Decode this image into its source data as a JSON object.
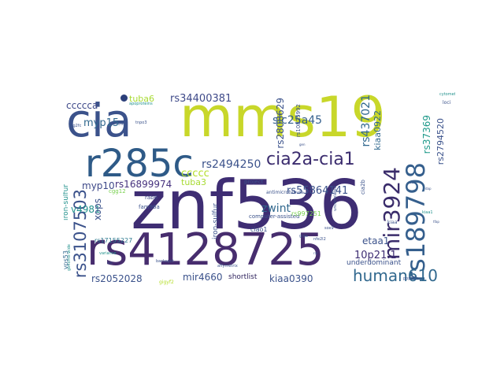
{
  "palette": {
    "purple": "#440154",
    "indigo": "#3b528b",
    "blue": "#31688e",
    "teal": "#21918c",
    "green": "#35b779",
    "lime": "#b5de2b",
    "yellowgreen": "#c8d72a"
  },
  "words": [
    {
      "text": "znf536",
      "color": "#3e2d73"
    },
    {
      "text": "mms19",
      "color": "#c8d72a"
    },
    {
      "text": "rs4128725",
      "color": "#472d6e"
    },
    {
      "text": "cia",
      "color": "#3b528b"
    },
    {
      "text": "r285c",
      "color": "#2e5a87"
    },
    {
      "text": "rs189798",
      "color": "#355f8d"
    },
    {
      "text": "mir3924",
      "color": "#3a2c6b"
    },
    {
      "text": "cia2a-cia1",
      "color": "#3b2c6e"
    },
    {
      "text": "human610",
      "color": "#31688e"
    },
    {
      "text": "rs3107503",
      "color": "#3b528b"
    },
    {
      "text": "rs2494250",
      "color": "#3b528b"
    },
    {
      "text": "rs34400381",
      "color": "#3e4989"
    },
    {
      "text": "slc25a45",
      "color": "#35608d"
    },
    {
      "text": "myp15",
      "color": "#31688e"
    },
    {
      "text": "ccccca",
      "color": "#3e4989"
    },
    {
      "text": "tuba6",
      "color": "#a8db34"
    },
    {
      "text": "rs2808629",
      "color": "#3b528b"
    },
    {
      "text": "rs437021",
      "color": "#31688e"
    },
    {
      "text": "kiaa0922",
      "color": "#31688e"
    },
    {
      "text": "rs37369",
      "color": "#1f9a8a"
    },
    {
      "text": "rs2794520",
      "color": "#3b528b"
    },
    {
      "text": "ccccc",
      "color": "#b5de2b"
    },
    {
      "text": "tuba3",
      "color": "#a8db34"
    },
    {
      "text": "myp10",
      "color": "#3e4989"
    },
    {
      "text": "rs16899974",
      "color": "#46327e"
    },
    {
      "text": "rs55864141",
      "color": "#3b528b"
    },
    {
      "text": "zwint",
      "color": "#31688e"
    },
    {
      "text": "v4981",
      "color": "#21918c"
    },
    {
      "text": "xops",
      "color": "#3b528b"
    },
    {
      "text": "etaa1",
      "color": "#3b528b"
    },
    {
      "text": "10p21.1",
      "color": "#3e2d73"
    },
    {
      "text": "rs2052028",
      "color": "#3b528b"
    },
    {
      "text": "mir4660",
      "color": "#3b528b"
    },
    {
      "text": "kiaa0390",
      "color": "#3b528b"
    },
    {
      "text": "underdominant",
      "color": "#3b528b"
    },
    {
      "text": "shortlist",
      "color": "#2c1f5a"
    },
    {
      "text": "iron-sulfur",
      "color": "#21918c"
    },
    {
      "text": "vps53",
      "color": "#31688e"
    },
    {
      "text": "rs17155227",
      "color": "#2a788e"
    },
    {
      "text": "cgg12",
      "color": "#7ad151"
    },
    {
      "text": "rab6",
      "color": "#3e4989"
    },
    {
      "text": "fam96a",
      "color": "#3b528b"
    },
    {
      "text": "iron-sulfur",
      "color": "#3b528b"
    },
    {
      "text": "computer-assisted",
      "color": "#3b528b"
    },
    {
      "text": "rs997251",
      "color": "#7ad151"
    },
    {
      "text": "ciao1",
      "color": "#3b528b"
    },
    {
      "text": "antimicrotubule",
      "color": "#3b528b"
    },
    {
      "text": "cia2b",
      "color": "#3b528b"
    },
    {
      "text": "project",
      "color": "#3b528b"
    },
    {
      "text": "rs10825992",
      "color": "#3b528b"
    },
    {
      "text": "giga",
      "color": "#3b528b"
    },
    {
      "text": "nfe2l2",
      "color": "#3b528b"
    },
    {
      "text": "sox9",
      "color": "#3b528b"
    },
    {
      "text": "uncorrelated",
      "color": "#3b528b"
    },
    {
      "text": "log2fc",
      "color": "#3b528b"
    },
    {
      "text": "apoproteins",
      "color": "#21918c"
    },
    {
      "text": "tnpo3",
      "color": "#3b528b"
    },
    {
      "text": "cytometrie",
      "color": "#21918c"
    },
    {
      "text": "loci",
      "color": "#3b528b"
    },
    {
      "text": "kiaa",
      "color": "#3b528b"
    },
    {
      "text": "genome-wide",
      "color": "#21918c"
    },
    {
      "text": "variance",
      "color": "#21918c"
    },
    {
      "text": "backspot",
      "color": "#3b528b"
    },
    {
      "text": "affymetrix",
      "color": "#3b528b"
    },
    {
      "text": "pppir3b",
      "color": "#3b528b"
    },
    {
      "text": "gigyf2",
      "color": "#b5de2b"
    },
    {
      "text": "kiaa1",
      "color": "#21918c"
    },
    {
      "text": "cns",
      "color": "#3b528b"
    },
    {
      "text": "ccs",
      "color": "#3b528b"
    },
    {
      "text": "dap",
      "color": "#3b528b"
    },
    {
      "text": "tfap",
      "color": "#3b528b"
    },
    {
      "text": "aoc",
      "color": "#3b528b"
    },
    {
      "text": "gen",
      "color": "#3b528b"
    },
    {
      "text": "lfa",
      "color": "#3b528b"
    },
    {
      "text": "raf",
      "color": "#3b528b"
    }
  ]
}
